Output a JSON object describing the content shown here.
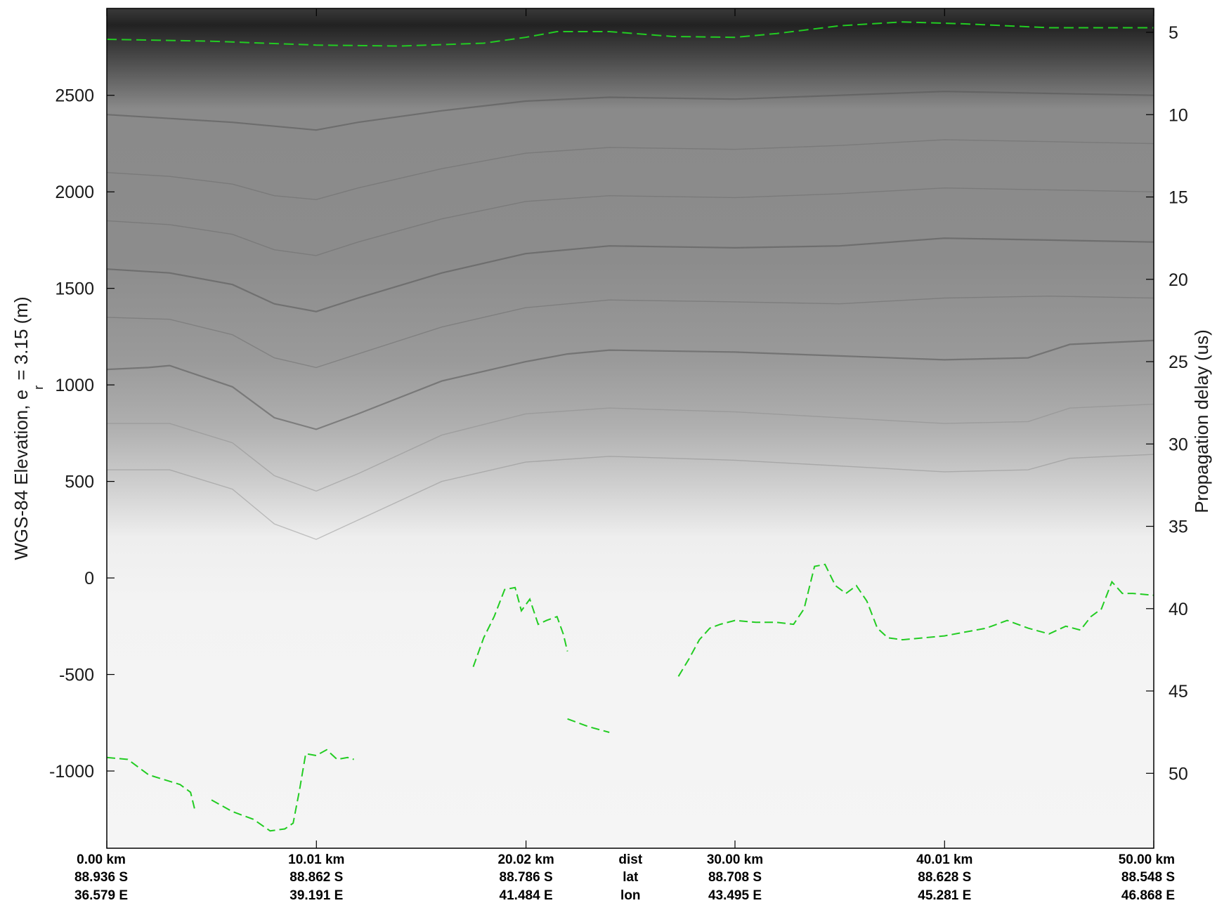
{
  "chart_data": {
    "type": "radargram",
    "title": "",
    "colors": {
      "pick_line": "#22cc22",
      "frame": "#000000",
      "background": "#ffffff"
    },
    "left_axis": {
      "label_prefix": "WGS-84 Elevation, e",
      "label_sub": "r",
      "label_suffix": " = 3.15 (m)",
      "unit": "m",
      "range": [
        -1400,
        2950
      ],
      "ticks": [
        2500,
        2000,
        1500,
        1000,
        500,
        0,
        -500,
        -1000
      ],
      "tick_labels": [
        "2500",
        "2000",
        "1500",
        "1000",
        "500",
        "0",
        "-500",
        "-1000"
      ]
    },
    "right_axis": {
      "label": "Propagation delay (us)",
      "unit": "us",
      "range": [
        3.55,
        54.55
      ],
      "ticks": [
        5,
        10,
        15,
        20,
        25,
        30,
        35,
        40,
        45,
        50
      ],
      "tick_labels": [
        "5",
        "10",
        "15",
        "20",
        "25",
        "30",
        "35",
        "40",
        "45",
        "50"
      ]
    },
    "x_axis": {
      "unit": "km",
      "range": [
        0,
        50
      ],
      "row_titles": [
        "dist",
        "lat",
        "lon"
      ],
      "ticks": [
        {
          "dist": 0.0,
          "dist_label": "0.00 km",
          "lat": "88.936 S",
          "lon": "36.579 E"
        },
        {
          "dist": 10.01,
          "dist_label": "10.01 km",
          "lat": "88.862 S",
          "lon": "39.191 E"
        },
        {
          "dist": 20.02,
          "dist_label": "20.02 km",
          "lat": "88.786 S",
          "lon": "41.484 E"
        },
        {
          "dist": 30.0,
          "dist_label": "30.00 km",
          "lat": "88.708 S",
          "lon": "43.495 E"
        },
        {
          "dist": 40.01,
          "dist_label": "40.01 km",
          "lat": "88.628 S",
          "lon": "45.281 E"
        },
        {
          "dist": 50.0,
          "dist_label": "50.00 km",
          "lat": "88.548 S",
          "lon": "46.868 E"
        }
      ]
    },
    "surface_pick": {
      "units": "km, m",
      "points": [
        [
          0,
          2790
        ],
        [
          5,
          2780
        ],
        [
          10,
          2760
        ],
        [
          14,
          2755
        ],
        [
          18,
          2770
        ],
        [
          20,
          2800
        ],
        [
          21.5,
          2830
        ],
        [
          24,
          2830
        ],
        [
          27,
          2805
        ],
        [
          30,
          2800
        ],
        [
          32,
          2820
        ],
        [
          35,
          2860
        ],
        [
          38,
          2880
        ],
        [
          41,
          2870
        ],
        [
          45,
          2850
        ],
        [
          48,
          2850
        ],
        [
          50,
          2850
        ]
      ]
    },
    "bed_pick_segments": {
      "units": "km, m",
      "segments": [
        [
          [
            0,
            -930
          ],
          [
            1,
            -940
          ],
          [
            2,
            -1020
          ],
          [
            3.5,
            -1070
          ],
          [
            4,
            -1110
          ],
          [
            4.2,
            -1200
          ]
        ],
        [
          [
            5,
            -1150
          ],
          [
            6,
            -1210
          ],
          [
            7,
            -1250
          ],
          [
            7.8,
            -1310
          ],
          [
            8.5,
            -1300
          ],
          [
            8.9,
            -1270
          ],
          [
            9.2,
            -1100
          ],
          [
            9.5,
            -910
          ],
          [
            10,
            -920
          ],
          [
            10.5,
            -890
          ],
          [
            11,
            -940
          ],
          [
            11.5,
            -930
          ],
          [
            11.8,
            -940
          ]
        ],
        [
          [
            17.5,
            -460
          ],
          [
            18,
            -310
          ],
          [
            18.5,
            -200
          ],
          [
            19,
            -60
          ],
          [
            19.5,
            -50
          ],
          [
            19.8,
            -170
          ],
          [
            20.2,
            -110
          ],
          [
            20.6,
            -240
          ],
          [
            21,
            -220
          ],
          [
            21.5,
            -200
          ],
          [
            21.8,
            -290
          ],
          [
            22,
            -380
          ]
        ],
        [
          [
            22,
            -730
          ],
          [
            23,
            -770
          ],
          [
            24,
            -800
          ]
        ],
        [
          [
            27.3,
            -510
          ],
          [
            27.8,
            -420
          ],
          [
            28.3,
            -320
          ],
          [
            28.8,
            -260
          ],
          [
            29.3,
            -240
          ],
          [
            30,
            -220
          ],
          [
            31,
            -230
          ],
          [
            32,
            -230
          ],
          [
            32.8,
            -240
          ],
          [
            33.3,
            -160
          ],
          [
            33.8,
            60
          ],
          [
            34.3,
            70
          ],
          [
            34.8,
            -40
          ],
          [
            35.3,
            -80
          ],
          [
            35.8,
            -40
          ],
          [
            36.3,
            -120
          ],
          [
            36.8,
            -260
          ],
          [
            37.3,
            -310
          ],
          [
            38,
            -320
          ],
          [
            40,
            -300
          ],
          [
            42,
            -260
          ],
          [
            43,
            -220
          ],
          [
            44,
            -260
          ],
          [
            45,
            -290
          ],
          [
            45.8,
            -250
          ],
          [
            46.5,
            -270
          ],
          [
            47,
            -200
          ],
          [
            47.5,
            -160
          ],
          [
            48,
            -20
          ],
          [
            48.5,
            -80
          ],
          [
            49,
            -80
          ],
          [
            50,
            -90
          ]
        ]
      ]
    },
    "internal_layers": {
      "units": "km, m",
      "layers": [
        {
          "class": "dark",
          "points": [
            [
              0,
              2400
            ],
            [
              3,
              2380
            ],
            [
              6,
              2360
            ],
            [
              8,
              2340
            ],
            [
              10,
              2320
            ],
            [
              12,
              2360
            ],
            [
              16,
              2420
            ],
            [
              20,
              2470
            ],
            [
              24,
              2490
            ],
            [
              30,
              2480
            ],
            [
              35,
              2500
            ],
            [
              40,
              2520
            ],
            [
              45,
              2510
            ],
            [
              50,
              2500
            ]
          ]
        },
        {
          "class": "mid",
          "points": [
            [
              0,
              2100
            ],
            [
              3,
              2080
            ],
            [
              6,
              2040
            ],
            [
              8,
              1980
            ],
            [
              10,
              1960
            ],
            [
              12,
              2020
            ],
            [
              16,
              2120
            ],
            [
              20,
              2200
            ],
            [
              24,
              2230
            ],
            [
              30,
              2220
            ],
            [
              35,
              2240
            ],
            [
              40,
              2270
            ],
            [
              45,
              2260
            ],
            [
              50,
              2250
            ]
          ]
        },
        {
          "class": "mid",
          "points": [
            [
              0,
              1850
            ],
            [
              3,
              1830
            ],
            [
              6,
              1780
            ],
            [
              8,
              1700
            ],
            [
              10,
              1670
            ],
            [
              12,
              1740
            ],
            [
              16,
              1860
            ],
            [
              20,
              1950
            ],
            [
              24,
              1980
            ],
            [
              30,
              1970
            ],
            [
              35,
              1990
            ],
            [
              40,
              2020
            ],
            [
              45,
              2010
            ],
            [
              50,
              2000
            ]
          ]
        },
        {
          "class": "dark",
          "points": [
            [
              0,
              1600
            ],
            [
              3,
              1580
            ],
            [
              6,
              1520
            ],
            [
              8,
              1420
            ],
            [
              10,
              1380
            ],
            [
              12,
              1450
            ],
            [
              16,
              1580
            ],
            [
              20,
              1680
            ],
            [
              24,
              1720
            ],
            [
              30,
              1710
            ],
            [
              35,
              1720
            ],
            [
              40,
              1760
            ],
            [
              45,
              1750
            ],
            [
              50,
              1740
            ]
          ]
        },
        {
          "class": "mid",
          "points": [
            [
              0,
              1350
            ],
            [
              3,
              1340
            ],
            [
              6,
              1260
            ],
            [
              8,
              1140
            ],
            [
              10,
              1090
            ],
            [
              12,
              1160
            ],
            [
              16,
              1300
            ],
            [
              20,
              1400
            ],
            [
              24,
              1440
            ],
            [
              30,
              1430
            ],
            [
              35,
              1420
            ],
            [
              40,
              1450
            ],
            [
              45,
              1460
            ],
            [
              50,
              1450
            ]
          ]
        },
        {
          "class": "dark",
          "points": [
            [
              0,
              1080
            ],
            [
              2,
              1090
            ],
            [
              3,
              1100
            ],
            [
              6,
              990
            ],
            [
              8,
              830
            ],
            [
              10,
              770
            ],
            [
              12,
              850
            ],
            [
              16,
              1020
            ],
            [
              20,
              1120
            ],
            [
              22,
              1160
            ],
            [
              24,
              1180
            ],
            [
              30,
              1170
            ],
            [
              35,
              1150
            ],
            [
              40,
              1130
            ],
            [
              44,
              1140
            ],
            [
              46,
              1210
            ],
            [
              50,
              1230
            ]
          ]
        },
        {
          "class": "light",
          "points": [
            [
              0,
              800
            ],
            [
              3,
              800
            ],
            [
              6,
              700
            ],
            [
              8,
              530
            ],
            [
              10,
              450
            ],
            [
              12,
              540
            ],
            [
              16,
              740
            ],
            [
              20,
              850
            ],
            [
              24,
              880
            ],
            [
              30,
              860
            ],
            [
              35,
              830
            ],
            [
              40,
              800
            ],
            [
              44,
              810
            ],
            [
              46,
              880
            ],
            [
              50,
              900
            ]
          ]
        },
        {
          "class": "light",
          "points": [
            [
              0,
              560
            ],
            [
              3,
              560
            ],
            [
              6,
              460
            ],
            [
              8,
              280
            ],
            [
              10,
              200
            ],
            [
              12,
              300
            ],
            [
              16,
              500
            ],
            [
              20,
              600
            ],
            [
              24,
              630
            ],
            [
              30,
              610
            ],
            [
              35,
              580
            ],
            [
              40,
              550
            ],
            [
              44,
              560
            ],
            [
              46,
              620
            ],
            [
              50,
              640
            ]
          ]
        }
      ]
    }
  }
}
